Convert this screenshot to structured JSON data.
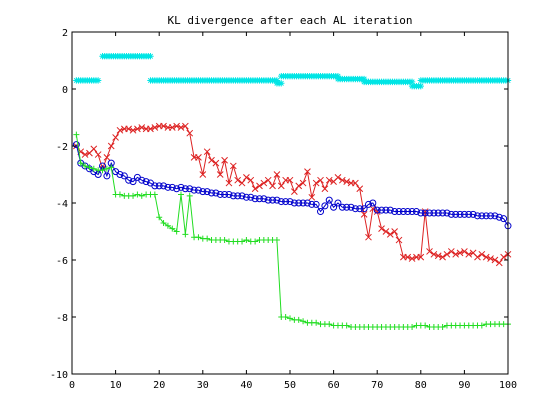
{
  "chart_data": {
    "type": "line",
    "title": "KL divergence after each AL iteration",
    "xlabel": "",
    "ylabel": "",
    "xlim": [
      0,
      100
    ],
    "ylim": [
      -10,
      2
    ],
    "xticks": [
      0,
      10,
      20,
      30,
      40,
      50,
      60,
      70,
      80,
      90,
      100
    ],
    "yticks": [
      -10,
      -8,
      -6,
      -4,
      -2,
      0,
      2
    ],
    "grid": false,
    "legend": "none",
    "series": [
      {
        "color": "#00e5e5",
        "marker": "star",
        "segments": [
          {
            "x0": 1,
            "x1": 6,
            "y": 0.3
          },
          {
            "x0": 7,
            "x1": 18,
            "y": 1.15
          },
          {
            "x0": 18,
            "x1": 47,
            "y": 0.3
          },
          {
            "x0": 47,
            "x1": 48,
            "y": 0.2
          },
          {
            "x0": 48,
            "x1": 61,
            "y": 0.45
          },
          {
            "x0": 61,
            "x1": 67,
            "y": 0.35
          },
          {
            "x0": 67,
            "x1": 78,
            "y": 0.25
          },
          {
            "x0": 78,
            "x1": 80,
            "y": 0.1
          },
          {
            "x0": 80,
            "x1": 100,
            "y": 0.3
          }
        ]
      },
      {
        "color": "#dd2222",
        "marker": "x",
        "points": [
          [
            1,
            -2.0
          ],
          [
            2,
            -2.2
          ],
          [
            3,
            -2.3
          ],
          [
            4,
            -2.25
          ],
          [
            5,
            -2.1
          ],
          [
            6,
            -2.3
          ],
          [
            7,
            -2.8
          ],
          [
            8,
            -2.4
          ],
          [
            9,
            -2.0
          ],
          [
            10,
            -1.7
          ],
          [
            11,
            -1.45
          ],
          [
            12,
            -1.4
          ],
          [
            13,
            -1.4
          ],
          [
            14,
            -1.45
          ],
          [
            15,
            -1.4
          ],
          [
            16,
            -1.35
          ],
          [
            17,
            -1.4
          ],
          [
            18,
            -1.4
          ],
          [
            19,
            -1.35
          ],
          [
            20,
            -1.3
          ],
          [
            21,
            -1.3
          ],
          [
            22,
            -1.35
          ],
          [
            23,
            -1.35
          ],
          [
            24,
            -1.3
          ],
          [
            25,
            -1.35
          ],
          [
            26,
            -1.3
          ],
          [
            27,
            -1.55
          ],
          [
            28,
            -2.4
          ],
          [
            29,
            -2.4
          ],
          [
            30,
            -3.0
          ],
          [
            31,
            -2.2
          ],
          [
            32,
            -2.5
          ],
          [
            33,
            -2.6
          ],
          [
            34,
            -3.0
          ],
          [
            35,
            -2.5
          ],
          [
            36,
            -3.3
          ],
          [
            37,
            -2.7
          ],
          [
            38,
            -3.2
          ],
          [
            39,
            -3.3
          ],
          [
            40,
            -3.1
          ],
          [
            41,
            -3.2
          ],
          [
            42,
            -3.5
          ],
          [
            43,
            -3.4
          ],
          [
            44,
            -3.3
          ],
          [
            45,
            -3.2
          ],
          [
            46,
            -3.4
          ],
          [
            47,
            -3.0
          ],
          [
            48,
            -3.4
          ],
          [
            49,
            -3.2
          ],
          [
            50,
            -3.2
          ],
          [
            51,
            -3.6
          ],
          [
            52,
            -3.4
          ],
          [
            53,
            -3.3
          ],
          [
            54,
            -2.9
          ],
          [
            55,
            -3.8
          ],
          [
            56,
            -3.3
          ],
          [
            57,
            -3.2
          ],
          [
            58,
            -3.5
          ],
          [
            59,
            -3.2
          ],
          [
            60,
            -3.25
          ],
          [
            61,
            -3.1
          ],
          [
            62,
            -3.2
          ],
          [
            63,
            -3.25
          ],
          [
            64,
            -3.3
          ],
          [
            65,
            -3.3
          ],
          [
            66,
            -3.5
          ],
          [
            67,
            -4.4
          ],
          [
            68,
            -5.2
          ],
          [
            69,
            -4.2
          ],
          [
            70,
            -4.3
          ],
          [
            71,
            -4.9
          ],
          [
            72,
            -5.0
          ],
          [
            73,
            -5.1
          ],
          [
            74,
            -5.0
          ],
          [
            75,
            -5.3
          ],
          [
            76,
            -5.9
          ],
          [
            77,
            -5.9
          ],
          [
            78,
            -5.95
          ],
          [
            79,
            -5.9
          ],
          [
            80,
            -5.9
          ],
          [
            81,
            -4.3
          ],
          [
            82,
            -5.7
          ],
          [
            83,
            -5.8
          ],
          [
            84,
            -5.85
          ],
          [
            85,
            -5.9
          ],
          [
            86,
            -5.8
          ],
          [
            87,
            -5.7
          ],
          [
            88,
            -5.8
          ],
          [
            89,
            -5.75
          ],
          [
            90,
            -5.7
          ],
          [
            91,
            -5.8
          ],
          [
            92,
            -5.75
          ],
          [
            93,
            -5.9
          ],
          [
            94,
            -5.8
          ],
          [
            95,
            -5.9
          ],
          [
            96,
            -5.95
          ],
          [
            97,
            -6.0
          ],
          [
            98,
            -6.1
          ],
          [
            99,
            -5.9
          ],
          [
            100,
            -5.8
          ]
        ]
      },
      {
        "color": "#0000cc",
        "marker": "circle",
        "points": [
          [
            1,
            -1.95
          ],
          [
            2,
            -2.6
          ],
          [
            3,
            -2.7
          ],
          [
            4,
            -2.8
          ],
          [
            5,
            -2.9
          ],
          [
            6,
            -3.0
          ],
          [
            7,
            -2.7
          ],
          [
            8,
            -3.05
          ],
          [
            9,
            -2.6
          ],
          [
            10,
            -2.9
          ],
          [
            11,
            -3.0
          ],
          [
            12,
            -3.05
          ],
          [
            13,
            -3.2
          ],
          [
            14,
            -3.25
          ],
          [
            15,
            -3.1
          ],
          [
            16,
            -3.2
          ],
          [
            17,
            -3.25
          ],
          [
            18,
            -3.3
          ],
          [
            19,
            -3.4
          ],
          [
            20,
            -3.4
          ],
          [
            21,
            -3.4
          ],
          [
            22,
            -3.45
          ],
          [
            23,
            -3.45
          ],
          [
            24,
            -3.5
          ],
          [
            25,
            -3.45
          ],
          [
            26,
            -3.5
          ],
          [
            27,
            -3.5
          ],
          [
            28,
            -3.55
          ],
          [
            29,
            -3.55
          ],
          [
            30,
            -3.6
          ],
          [
            31,
            -3.6
          ],
          [
            32,
            -3.65
          ],
          [
            33,
            -3.65
          ],
          [
            34,
            -3.7
          ],
          [
            35,
            -3.7
          ],
          [
            36,
            -3.7
          ],
          [
            37,
            -3.75
          ],
          [
            38,
            -3.75
          ],
          [
            39,
            -3.75
          ],
          [
            40,
            -3.8
          ],
          [
            41,
            -3.8
          ],
          [
            42,
            -3.85
          ],
          [
            43,
            -3.85
          ],
          [
            44,
            -3.85
          ],
          [
            45,
            -3.9
          ],
          [
            46,
            -3.9
          ],
          [
            47,
            -3.9
          ],
          [
            48,
            -3.95
          ],
          [
            49,
            -3.95
          ],
          [
            50,
            -3.95
          ],
          [
            51,
            -4.0
          ],
          [
            52,
            -4.0
          ],
          [
            53,
            -4.0
          ],
          [
            54,
            -4.0
          ],
          [
            55,
            -4.05
          ],
          [
            56,
            -4.05
          ],
          [
            57,
            -4.3
          ],
          [
            58,
            -4.1
          ],
          [
            59,
            -3.9
          ],
          [
            60,
            -4.15
          ],
          [
            61,
            -4.0
          ],
          [
            62,
            -4.15
          ],
          [
            63,
            -4.15
          ],
          [
            64,
            -4.15
          ],
          [
            65,
            -4.2
          ],
          [
            66,
            -4.2
          ],
          [
            67,
            -4.2
          ],
          [
            68,
            -4.05
          ],
          [
            69,
            -4.0
          ],
          [
            70,
            -4.25
          ],
          [
            71,
            -4.25
          ],
          [
            72,
            -4.25
          ],
          [
            73,
            -4.25
          ],
          [
            74,
            -4.3
          ],
          [
            75,
            -4.3
          ],
          [
            76,
            -4.3
          ],
          [
            77,
            -4.3
          ],
          [
            78,
            -4.3
          ],
          [
            79,
            -4.3
          ],
          [
            80,
            -4.35
          ],
          [
            81,
            -4.35
          ],
          [
            82,
            -4.35
          ],
          [
            83,
            -4.35
          ],
          [
            84,
            -4.35
          ],
          [
            85,
            -4.35
          ],
          [
            86,
            -4.35
          ],
          [
            87,
            -4.4
          ],
          [
            88,
            -4.4
          ],
          [
            89,
            -4.4
          ],
          [
            90,
            -4.4
          ],
          [
            91,
            -4.4
          ],
          [
            92,
            -4.4
          ],
          [
            93,
            -4.45
          ],
          [
            94,
            -4.45
          ],
          [
            95,
            -4.45
          ],
          [
            96,
            -4.45
          ],
          [
            97,
            -4.45
          ],
          [
            98,
            -4.5
          ],
          [
            99,
            -4.55
          ],
          [
            100,
            -4.8
          ]
        ]
      },
      {
        "color": "#22dd22",
        "marker": "plus",
        "points": [
          [
            1,
            -1.6
          ],
          [
            2,
            -2.6
          ],
          [
            3,
            -2.7
          ],
          [
            4,
            -2.75
          ],
          [
            5,
            -2.8
          ],
          [
            6,
            -2.85
          ],
          [
            7,
            -2.85
          ],
          [
            8,
            -2.8
          ],
          [
            9,
            -2.75
          ],
          [
            10,
            -3.7
          ],
          [
            11,
            -3.7
          ],
          [
            12,
            -3.75
          ],
          [
            13,
            -3.75
          ],
          [
            14,
            -3.75
          ],
          [
            15,
            -3.7
          ],
          [
            16,
            -3.75
          ],
          [
            17,
            -3.7
          ],
          [
            18,
            -3.7
          ],
          [
            19,
            -3.7
          ],
          [
            20,
            -4.5
          ],
          [
            21,
            -4.7
          ],
          [
            22,
            -4.8
          ],
          [
            23,
            -4.9
          ],
          [
            24,
            -5.0
          ],
          [
            25,
            -3.7
          ],
          [
            26,
            -5.1
          ],
          [
            27,
            -3.75
          ],
          [
            28,
            -5.2
          ],
          [
            29,
            -5.2
          ],
          [
            30,
            -5.25
          ],
          [
            31,
            -5.25
          ],
          [
            32,
            -5.3
          ],
          [
            33,
            -5.3
          ],
          [
            34,
            -5.3
          ],
          [
            35,
            -5.3
          ],
          [
            36,
            -5.35
          ],
          [
            37,
            -5.35
          ],
          [
            38,
            -5.35
          ],
          [
            39,
            -5.35
          ],
          [
            40,
            -5.3
          ],
          [
            41,
            -5.35
          ],
          [
            42,
            -5.35
          ],
          [
            43,
            -5.3
          ],
          [
            44,
            -5.3
          ],
          [
            45,
            -5.3
          ],
          [
            46,
            -5.3
          ],
          [
            47,
            -5.3
          ],
          [
            48,
            -8.0
          ],
          [
            49,
            -8.0
          ],
          [
            50,
            -8.05
          ],
          [
            51,
            -8.1
          ],
          [
            52,
            -8.1
          ],
          [
            53,
            -8.15
          ],
          [
            54,
            -8.2
          ],
          [
            55,
            -8.2
          ],
          [
            56,
            -8.2
          ],
          [
            57,
            -8.25
          ],
          [
            58,
            -8.25
          ],
          [
            59,
            -8.25
          ],
          [
            60,
            -8.3
          ],
          [
            61,
            -8.3
          ],
          [
            62,
            -8.3
          ],
          [
            63,
            -8.3
          ],
          [
            64,
            -8.35
          ],
          [
            65,
            -8.35
          ],
          [
            66,
            -8.35
          ],
          [
            67,
            -8.35
          ],
          [
            68,
            -8.35
          ],
          [
            69,
            -8.35
          ],
          [
            70,
            -8.35
          ],
          [
            71,
            -8.35
          ],
          [
            72,
            -8.35
          ],
          [
            73,
            -8.35
          ],
          [
            74,
            -8.35
          ],
          [
            75,
            -8.35
          ],
          [
            76,
            -8.35
          ],
          [
            77,
            -8.35
          ],
          [
            78,
            -8.35
          ],
          [
            79,
            -8.3
          ],
          [
            80,
            -8.3
          ],
          [
            81,
            -8.3
          ],
          [
            82,
            -8.35
          ],
          [
            83,
            -8.35
          ],
          [
            84,
            -8.35
          ],
          [
            85,
            -8.35
          ],
          [
            86,
            -8.3
          ],
          [
            87,
            -8.3
          ],
          [
            88,
            -8.3
          ],
          [
            89,
            -8.3
          ],
          [
            90,
            -8.3
          ],
          [
            91,
            -8.3
          ],
          [
            92,
            -8.3
          ],
          [
            93,
            -8.3
          ],
          [
            94,
            -8.3
          ],
          [
            95,
            -8.25
          ],
          [
            96,
            -8.25
          ],
          [
            97,
            -8.25
          ],
          [
            98,
            -8.25
          ],
          [
            99,
            -8.25
          ],
          [
            100,
            -8.25
          ]
        ]
      }
    ]
  }
}
